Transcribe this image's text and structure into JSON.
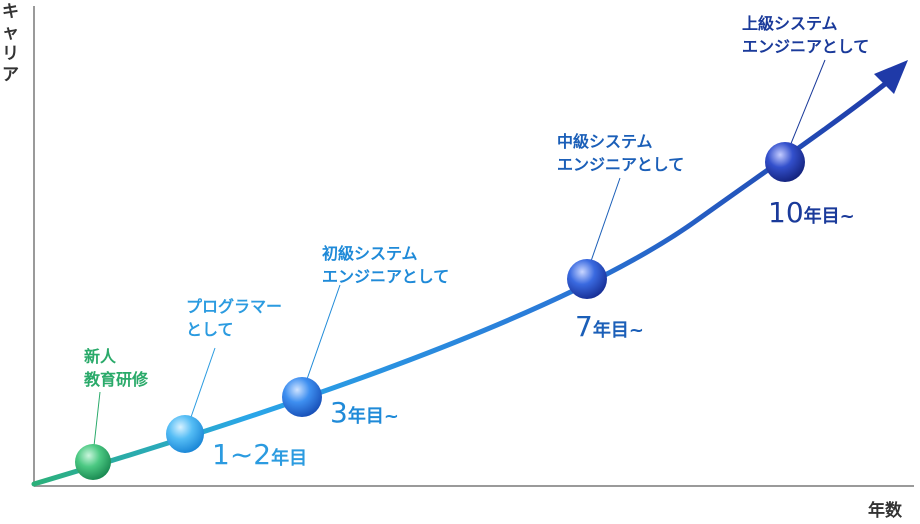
{
  "axes": {
    "y_title": "キャリア",
    "x_title": "年数"
  },
  "stages": [
    {
      "id": "new-hire",
      "label_lines": [
        "新人",
        "教育研修"
      ],
      "color": "#2aaa6a",
      "year_main": "",
      "year_suffix": ""
    },
    {
      "id": "programmer",
      "label_lines": [
        "プログラマー",
        "として"
      ],
      "color": "#2b9be0",
      "year_main": "1~2",
      "year_suffix": "年目"
    },
    {
      "id": "junior-se",
      "label_lines": [
        "初級システム",
        "エンジニアとして"
      ],
      "color": "#1f8ad8",
      "year_main": "3",
      "year_suffix": "年目~"
    },
    {
      "id": "mid-se",
      "label_lines": [
        "中級システム",
        "エンジニアとして"
      ],
      "color": "#1b5fb8",
      "year_main": "7",
      "year_suffix": "年目~"
    },
    {
      "id": "senior-se",
      "label_lines": [
        "上級システム",
        "エンジニアとして"
      ],
      "color": "#1a3a9a",
      "year_main": "10",
      "year_suffix": "年目~"
    }
  ],
  "colors": {
    "axis": "#9a9a9a",
    "curve_start": "#2bb07a",
    "curve_mid": "#2a9ae6",
    "curve_end": "#1f3aa8"
  }
}
